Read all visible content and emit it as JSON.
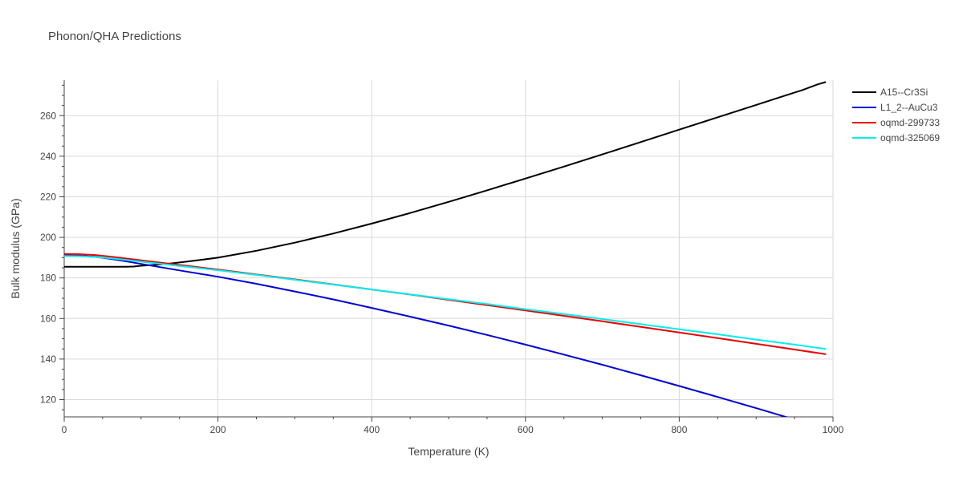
{
  "chart_data": {
    "type": "line",
    "title": "Phonon/QHA Predictions",
    "xlabel": "Temperature (K)",
    "ylabel": "Bulk modulus (GPa)",
    "xlim": [
      0,
      1000
    ],
    "ylim": [
      111.5,
      277.5
    ],
    "xticks": [
      0,
      200,
      400,
      600,
      800,
      1000
    ],
    "yticks": [
      120,
      140,
      160,
      180,
      200,
      220,
      240,
      260
    ],
    "grid": true,
    "legend_position": "right",
    "series": [
      {
        "name": "A15--Cr3Si",
        "color": "#000000",
        "x": [
          0,
          20,
          40,
          60,
          80,
          90,
          100,
          120,
          140,
          160,
          180,
          200,
          250,
          300,
          350,
          400,
          450,
          500,
          550,
          600,
          650,
          700,
          750,
          800,
          850,
          900,
          950,
          960,
          980,
          990
        ],
        "y": [
          185.5,
          185.5,
          185.5,
          185.5,
          185.5,
          185.6,
          186.0,
          186.5,
          187.2,
          188.1,
          189.0,
          190.0,
          193.4,
          197.4,
          201.9,
          206.8,
          212.0,
          217.5,
          223.2,
          229.0,
          234.9,
          240.9,
          247.0,
          253.1,
          259.2,
          265.3,
          271.4,
          272.6,
          275.4,
          276.5
        ]
      },
      {
        "name": "L1_2--AuCu3",
        "color": "#0000dd",
        "x": [
          0,
          20,
          40,
          60,
          80,
          100,
          150,
          200,
          250,
          300,
          350,
          400,
          450,
          500,
          550,
          600,
          650,
          700,
          750,
          800,
          850,
          900,
          950,
          990
        ],
        "y": [
          191.2,
          191.0,
          190.4,
          189.4,
          188.2,
          186.9,
          183.7,
          180.6,
          177.1,
          173.3,
          169.4,
          165.2,
          160.9,
          156.5,
          151.9,
          147.1,
          142.2,
          137.2,
          132.0,
          126.7,
          121.3,
          115.8,
          110.2,
          105.7
        ]
      },
      {
        "name": "oqmd-299733",
        "color": "#ee0000",
        "x": [
          0,
          20,
          40,
          60,
          80,
          100,
          150,
          200,
          250,
          300,
          350,
          400,
          450,
          500,
          550,
          600,
          650,
          700,
          750,
          800,
          850,
          900,
          950,
          990
        ],
        "y": [
          191.8,
          191.7,
          191.3,
          190.5,
          189.6,
          188.7,
          186.4,
          184.1,
          181.7,
          179.3,
          176.8,
          174.3,
          171.8,
          169.2,
          166.6,
          164.0,
          161.3,
          158.6,
          155.9,
          153.1,
          150.3,
          147.5,
          144.7,
          142.4
        ]
      },
      {
        "name": "oqmd-325069",
        "color": "#00eeee",
        "x": [
          0,
          20,
          40,
          60,
          80,
          100,
          150,
          200,
          250,
          300,
          350,
          400,
          450,
          500,
          550,
          600,
          650,
          700,
          750,
          800,
          850,
          900,
          950,
          990
        ],
        "y": [
          190.8,
          190.7,
          190.3,
          189.7,
          188.9,
          188.0,
          185.9,
          183.8,
          181.5,
          179.1,
          176.7,
          174.3,
          171.9,
          169.5,
          167.1,
          164.6,
          162.2,
          159.7,
          157.2,
          154.7,
          152.2,
          149.6,
          147.1,
          145.0
        ]
      }
    ]
  }
}
